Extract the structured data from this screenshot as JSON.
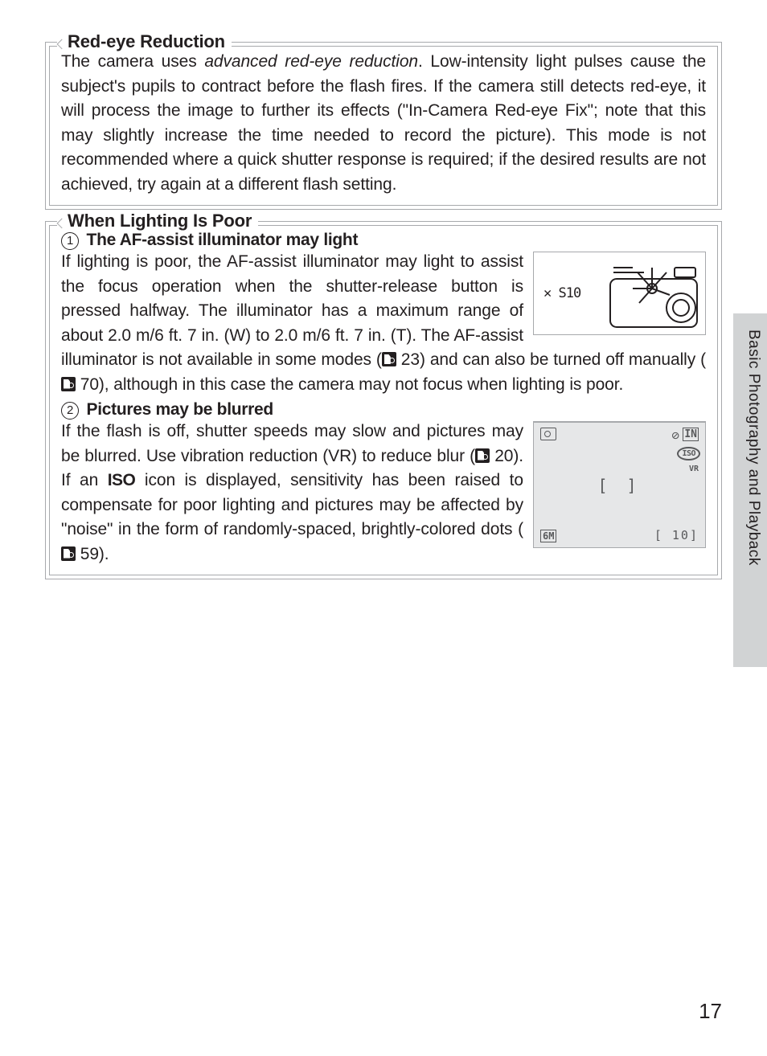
{
  "sections": {
    "redeye": {
      "title": "Red-eye Reduction",
      "body_html": "The camera uses <em>advanced red-eye reduction</em>.  Low-intensity light pulses cause the subject's pupils to contract before the flash fires.  If the camera still detects red-eye, it will process the image to further its effects (\"In-Camera Red-eye Fix\"; note that this may slightly increase the time needed to record the picture).  This mode is not recommended where a quick shutter response is required; if the desired results are not achieved, try again at a different flash setting."
    },
    "lowlight": {
      "title": "When Lighting Is Poor",
      "items": [
        {
          "num": "1",
          "heading": "The AF-assist illuminator may light",
          "body_html": "If lighting is poor, the AF-assist illuminator may light to assist the focus operation when the shutter-release button is pressed halfway.  The illuminator has a maximum range of about 2.0 m/6 ft. 7 in. (W) to 2.0 m/6 ft. 7 in. (T).  The AF-assist illuminator is not available in some modes (<span class='ref-icon' data-name='page-ref-icon' data-interactable='false'></span> 23) and can also be turned off manually (<span class='ref-icon' data-name='page-ref-icon' data-interactable='false'></span> 70), although in this case the camera may not focus when lighting is poor.",
          "figure": {
            "type": "camera-illustration",
            "text": "✕ S10"
          }
        },
        {
          "num": "2",
          "heading": "Pictures may be blurred",
          "body_html": "If the flash is off, shutter speeds may slow and pictures may be blurred.  Use vibration reduction (VR) to reduce blur (<span class='ref-icon' data-name='page-ref-icon' data-interactable='false'></span> 20).  If an <b class='cond'>ISO</b> icon is displayed, sensitivity has been raised to compensate for poor lighting and pictures may be affected by \"noise\" in the form of randomly-spaced, brightly-colored dots (<span class='ref-icon' data-name='page-ref-icon' data-interactable='false'></span> 59).",
          "figure": {
            "type": "lcd-screen",
            "top_left_icon": "camera-mode-icon",
            "top_right_icons": [
              "flash-off-icon",
              "memory-icon"
            ],
            "iso_badge": "ISO",
            "vr_label": "VR",
            "center_brackets": "[   ]",
            "bottom_left": "6M",
            "bottom_right": "[   10]"
          }
        }
      ]
    }
  },
  "side_tab_label": "Basic Photography and Playback",
  "page_number": "17",
  "colors": {
    "border": "#a7a9ac",
    "text": "#231f20",
    "lcd_bg": "#e6e7e8",
    "side_tab_bg": "#d1d3d4"
  }
}
